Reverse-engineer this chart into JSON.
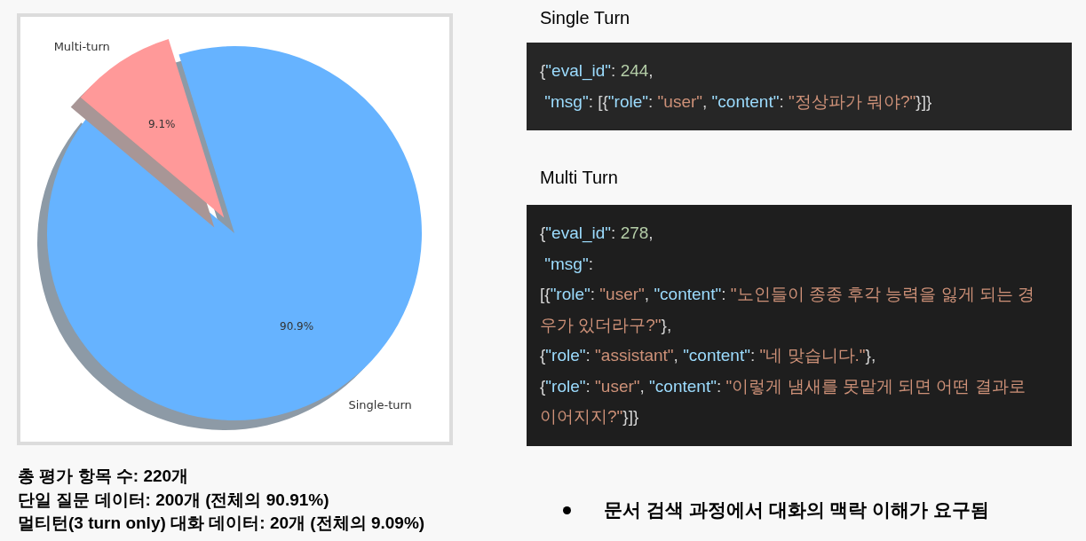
{
  "chart_data": [
    {
      "type": "pie",
      "categories": [
        "Single-turn",
        "Multi-turn"
      ],
      "values": [
        90.9,
        9.1
      ],
      "colors": [
        "#66b3ff",
        "#ff9999"
      ],
      "value_labels": [
        "90.9%",
        "9.1%"
      ],
      "annotations": [
        "총 평가 항목 수: 220개",
        "단일 질문 데이터: 200개 (전체의 90.91%)",
        "멀티턴(3 turn only) 대화 데이터: 20개 (전체의 9.09%)"
      ]
    },
    {
      "type": "other",
      "annotations": [
        "Single Turn",
        "{\"eval_id\": 244,\n \"msg\": [{\"role\": \"user\", \"content\": \"정상파가 뭐야?\"}]}",
        "Multi Turn",
        "{\"eval_id\": 278,\n \"msg\":\n[{\"role\": \"user\", \"content\": \"노인들이 종종 후각 능력을 잃게 되는 경우가 있더라구?\"},\n{\"role\": \"assistant\", \"content\": \"네 맞습니다.\"},\n{\"role\": \"user\", \"content\": \"이렇게 냄새를 못맡게 되면 어떤 결과로 이어지지?\"}]}",
        "문서 검색 과정에서 대화의 맥락 이해가 요구됨"
      ]
    }
  ]
}
